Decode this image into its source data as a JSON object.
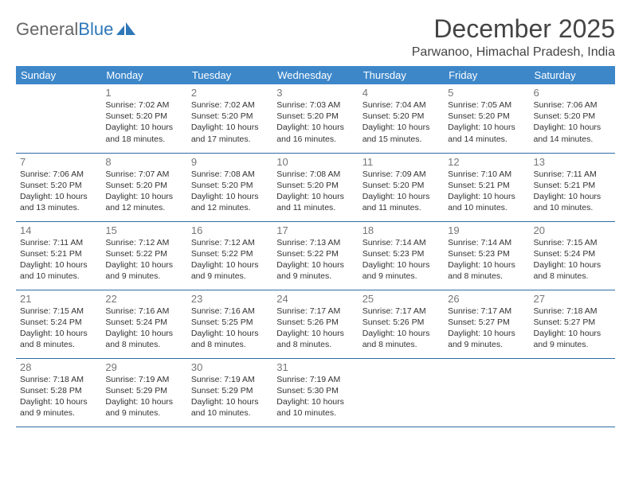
{
  "logo": {
    "word1": "General",
    "word2": "Blue"
  },
  "title": "December 2025",
  "location": "Parwanoo, Himachal Pradesh, India",
  "colors": {
    "header_bg": "#3d87c9",
    "header_text": "#ffffff",
    "row_border": "#2e6da4",
    "logo_gray": "#666666",
    "logo_blue": "#2e77b8",
    "daynum": "#777777",
    "body_text": "#333333"
  },
  "day_headers": [
    "Sunday",
    "Monday",
    "Tuesday",
    "Wednesday",
    "Thursday",
    "Friday",
    "Saturday"
  ],
  "first_weekday_offset": 1,
  "days": [
    {
      "n": 1,
      "sr": "7:02 AM",
      "ss": "5:20 PM",
      "dl": "10 hours and 18 minutes."
    },
    {
      "n": 2,
      "sr": "7:02 AM",
      "ss": "5:20 PM",
      "dl": "10 hours and 17 minutes."
    },
    {
      "n": 3,
      "sr": "7:03 AM",
      "ss": "5:20 PM",
      "dl": "10 hours and 16 minutes."
    },
    {
      "n": 4,
      "sr": "7:04 AM",
      "ss": "5:20 PM",
      "dl": "10 hours and 15 minutes."
    },
    {
      "n": 5,
      "sr": "7:05 AM",
      "ss": "5:20 PM",
      "dl": "10 hours and 14 minutes."
    },
    {
      "n": 6,
      "sr": "7:06 AM",
      "ss": "5:20 PM",
      "dl": "10 hours and 14 minutes."
    },
    {
      "n": 7,
      "sr": "7:06 AM",
      "ss": "5:20 PM",
      "dl": "10 hours and 13 minutes."
    },
    {
      "n": 8,
      "sr": "7:07 AM",
      "ss": "5:20 PM",
      "dl": "10 hours and 12 minutes."
    },
    {
      "n": 9,
      "sr": "7:08 AM",
      "ss": "5:20 PM",
      "dl": "10 hours and 12 minutes."
    },
    {
      "n": 10,
      "sr": "7:08 AM",
      "ss": "5:20 PM",
      "dl": "10 hours and 11 minutes."
    },
    {
      "n": 11,
      "sr": "7:09 AM",
      "ss": "5:20 PM",
      "dl": "10 hours and 11 minutes."
    },
    {
      "n": 12,
      "sr": "7:10 AM",
      "ss": "5:21 PM",
      "dl": "10 hours and 10 minutes."
    },
    {
      "n": 13,
      "sr": "7:11 AM",
      "ss": "5:21 PM",
      "dl": "10 hours and 10 minutes."
    },
    {
      "n": 14,
      "sr": "7:11 AM",
      "ss": "5:21 PM",
      "dl": "10 hours and 10 minutes."
    },
    {
      "n": 15,
      "sr": "7:12 AM",
      "ss": "5:22 PM",
      "dl": "10 hours and 9 minutes."
    },
    {
      "n": 16,
      "sr": "7:12 AM",
      "ss": "5:22 PM",
      "dl": "10 hours and 9 minutes."
    },
    {
      "n": 17,
      "sr": "7:13 AM",
      "ss": "5:22 PM",
      "dl": "10 hours and 9 minutes."
    },
    {
      "n": 18,
      "sr": "7:14 AM",
      "ss": "5:23 PM",
      "dl": "10 hours and 9 minutes."
    },
    {
      "n": 19,
      "sr": "7:14 AM",
      "ss": "5:23 PM",
      "dl": "10 hours and 8 minutes."
    },
    {
      "n": 20,
      "sr": "7:15 AM",
      "ss": "5:24 PM",
      "dl": "10 hours and 8 minutes."
    },
    {
      "n": 21,
      "sr": "7:15 AM",
      "ss": "5:24 PM",
      "dl": "10 hours and 8 minutes."
    },
    {
      "n": 22,
      "sr": "7:16 AM",
      "ss": "5:24 PM",
      "dl": "10 hours and 8 minutes."
    },
    {
      "n": 23,
      "sr": "7:16 AM",
      "ss": "5:25 PM",
      "dl": "10 hours and 8 minutes."
    },
    {
      "n": 24,
      "sr": "7:17 AM",
      "ss": "5:26 PM",
      "dl": "10 hours and 8 minutes."
    },
    {
      "n": 25,
      "sr": "7:17 AM",
      "ss": "5:26 PM",
      "dl": "10 hours and 8 minutes."
    },
    {
      "n": 26,
      "sr": "7:17 AM",
      "ss": "5:27 PM",
      "dl": "10 hours and 9 minutes."
    },
    {
      "n": 27,
      "sr": "7:18 AM",
      "ss": "5:27 PM",
      "dl": "10 hours and 9 minutes."
    },
    {
      "n": 28,
      "sr": "7:18 AM",
      "ss": "5:28 PM",
      "dl": "10 hours and 9 minutes."
    },
    {
      "n": 29,
      "sr": "7:19 AM",
      "ss": "5:29 PM",
      "dl": "10 hours and 9 minutes."
    },
    {
      "n": 30,
      "sr": "7:19 AM",
      "ss": "5:29 PM",
      "dl": "10 hours and 10 minutes."
    },
    {
      "n": 31,
      "sr": "7:19 AM",
      "ss": "5:30 PM",
      "dl": "10 hours and 10 minutes."
    }
  ],
  "labels": {
    "sunrise": "Sunrise:",
    "sunset": "Sunset:",
    "daylight": "Daylight:"
  }
}
